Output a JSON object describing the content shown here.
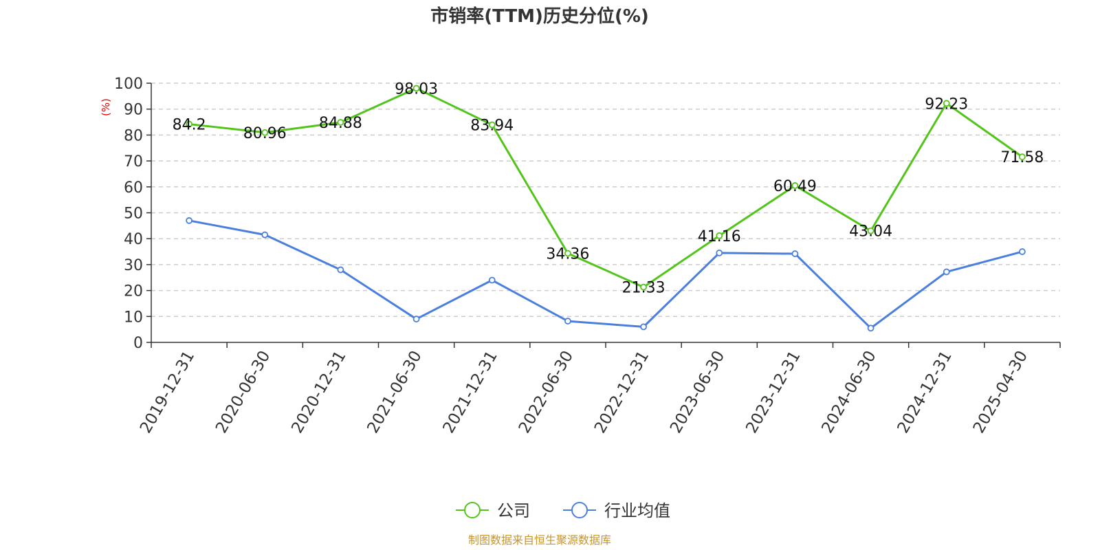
{
  "chart_data": {
    "type": "line",
    "title": "市销率(TTM)历史分位(%)",
    "ylabel": "(%)",
    "ylim": [
      0,
      100
    ],
    "yticks": [
      0,
      10,
      20,
      30,
      40,
      50,
      60,
      70,
      80,
      90,
      100
    ],
    "grid": true,
    "legend_position": "bottom-center",
    "categories": [
      "2019-12-31",
      "2020-06-30",
      "2020-12-31",
      "2021-06-30",
      "2021-12-31",
      "2022-06-30",
      "2022-12-31",
      "2023-06-30",
      "2023-12-31",
      "2024-06-30",
      "2024-12-31",
      "2025-04-30"
    ],
    "series": [
      {
        "name": "公司",
        "color": "#52c41a",
        "show_labels": true,
        "values": [
          84.2,
          80.96,
          84.88,
          98.03,
          83.94,
          34.36,
          21.33,
          41.16,
          60.49,
          43.04,
          92.23,
          71.58
        ],
        "labels": [
          "84.2",
          "80.96",
          "84.88",
          "98.03",
          "83.94",
          "34.36",
          "21.33",
          "41.16",
          "60.49",
          "43.04",
          "92.23",
          "71.58"
        ]
      },
      {
        "name": "行业均值",
        "color": "#4a7fde",
        "show_labels": false,
        "values": [
          47,
          41.5,
          28,
          9,
          24,
          8.2,
          6,
          34.5,
          34.2,
          5.5,
          27.2,
          35
        ]
      }
    ],
    "ylabel_color": "#e60000",
    "source_color": "#c8942a"
  },
  "footer": {
    "source": "制图数据来自恒生聚源数据库"
  }
}
